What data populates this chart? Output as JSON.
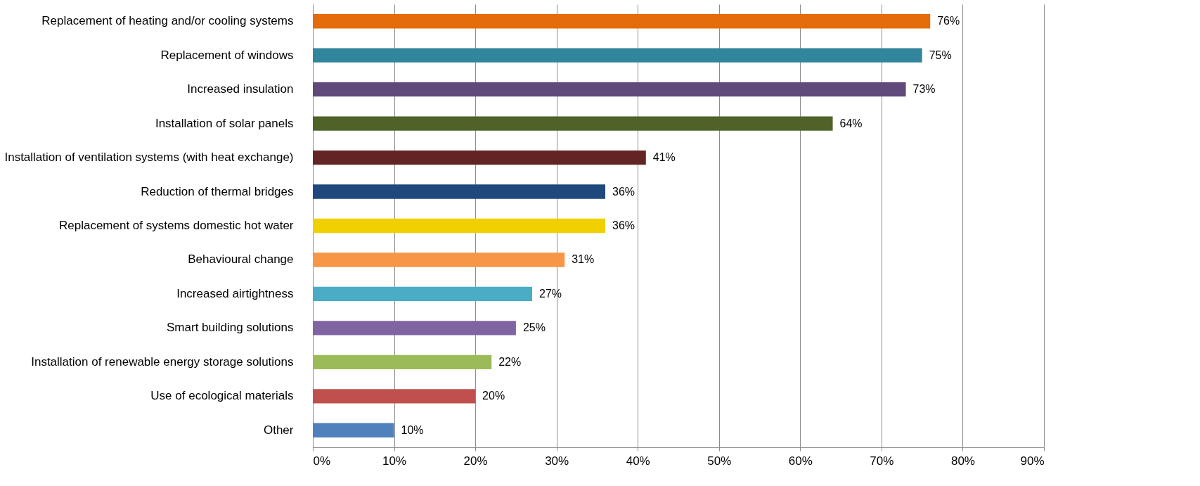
{
  "chart_data": {
    "type": "bar",
    "orientation": "horizontal",
    "categories": [
      "Replacement of heating and/or cooling systems",
      "Replacement of windows",
      "Increased insulation",
      "Installation of solar panels",
      "Installation of ventilation systems (with heat exchange)",
      "Reduction of thermal bridges",
      "Replacement of systems domestic hot water",
      "Behavioural change",
      "Increased airtightness",
      "Smart building solutions",
      "Installation of renewable energy storage solutions",
      "Use of ecological materials",
      "Other"
    ],
    "values": [
      76,
      75,
      73,
      64,
      41,
      36,
      36,
      31,
      27,
      25,
      22,
      20,
      10
    ],
    "value_labels": [
      "76%",
      "75%",
      "73%",
      "64%",
      "41%",
      "36%",
      "36%",
      "31%",
      "27%",
      "25%",
      "22%",
      "20%",
      "10%"
    ],
    "colors": [
      "#e46c0a",
      "#31859c",
      "#604a7b",
      "#4f6228",
      "#632523",
      "#1f497d",
      "#f0d000",
      "#f79646",
      "#4bacc6",
      "#8064a2",
      "#9bbb59",
      "#c0504d",
      "#4f81bd"
    ],
    "xlim": [
      0,
      90
    ],
    "xticks": [
      {
        "value": 0,
        "label": "0%"
      },
      {
        "value": 10,
        "label": "10%"
      },
      {
        "value": 20,
        "label": "20%"
      },
      {
        "value": 30,
        "label": "30%"
      },
      {
        "value": 40,
        "label": "40%"
      },
      {
        "value": 50,
        "label": "50%"
      },
      {
        "value": 60,
        "label": "60%"
      },
      {
        "value": 70,
        "label": "70%"
      },
      {
        "value": 80,
        "label": "80%"
      },
      {
        "value": 90,
        "label": "90%"
      }
    ],
    "grid": "x"
  }
}
